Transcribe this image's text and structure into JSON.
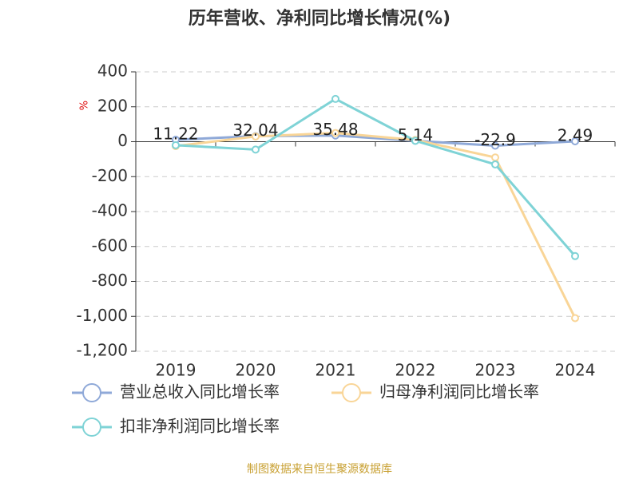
{
  "chart_data": {
    "type": "line",
    "title": "历年营收、净利同比增长情况(%)",
    "y_unit": "%",
    "source": "制图数据来自恒生聚源数据库",
    "categories": [
      "2019",
      "2020",
      "2021",
      "2022",
      "2023",
      "2024"
    ],
    "series": [
      {
        "name": "营业总收入同比增长率",
        "color": "#8fa9d8",
        "values": [
          11.22,
          32.04,
          35.48,
          5.14,
          -22.9,
          2.49
        ],
        "show_labels": true
      },
      {
        "name": "归母净利润同比增长率",
        "color": "#f9d597",
        "values": [
          -25,
          30,
          50,
          10,
          -90,
          -1010
        ]
      },
      {
        "name": "扣非净利润同比增长率",
        "color": "#7fd3d6",
        "values": [
          -20,
          -45,
          245,
          5,
          -130,
          -655
        ]
      }
    ],
    "ylim": [
      -1200,
      400
    ],
    "yticks": [
      {
        "value": -1200,
        "label": "-1,200"
      },
      {
        "value": -1000,
        "label": "-1,000"
      },
      -800,
      -600,
      -400,
      -200,
      0,
      200,
      400
    ],
    "grid": true
  }
}
